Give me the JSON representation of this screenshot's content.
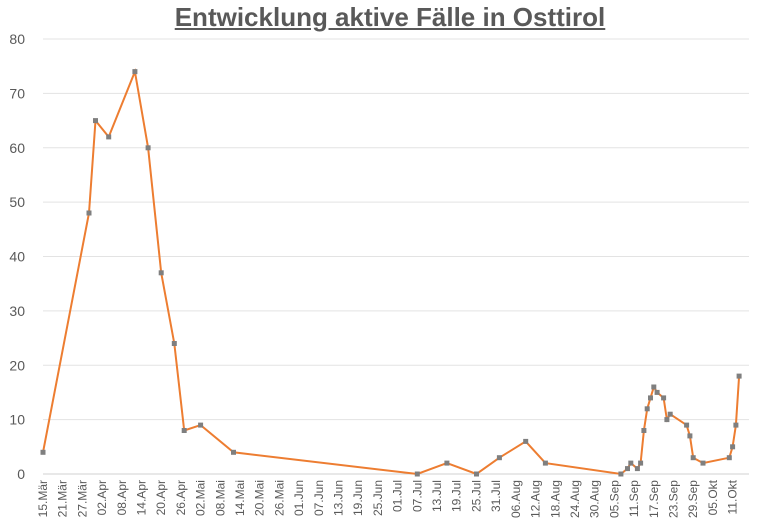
{
  "chart_data": {
    "type": "line",
    "title": "Entwicklung aktive Fälle in Osttirol",
    "xlabel": "",
    "ylabel": "",
    "ylim": [
      0,
      80
    ],
    "yticks": [
      0,
      10,
      20,
      30,
      40,
      50,
      60,
      70,
      80
    ],
    "xlim": [
      "2020-03-15",
      "2020-10-16"
    ],
    "xticks": [
      "15.Mär",
      "21.Mär",
      "27.Mär",
      "02.Apr",
      "08.Apr",
      "14.Apr",
      "20.Apr",
      "26.Apr",
      "02.Mai",
      "08.Mai",
      "14.Mai",
      "20.Mai",
      "26.Mai",
      "01.Jun",
      "07.Jun",
      "13.Jun",
      "19.Jun",
      "25.Jun",
      "01.Jul",
      "07.Jul",
      "13.Jul",
      "19.Jul",
      "25.Jul",
      "31.Jul",
      "06.Aug",
      "12.Aug",
      "18.Aug",
      "24.Aug",
      "30.Aug",
      "05.Sep",
      "11.Sep",
      "17.Sep",
      "23.Sep",
      "29.Sep",
      "05.Okt",
      "11.Okt"
    ],
    "grid": true,
    "legend": "none",
    "series": [
      {
        "color": "#ED7D31",
        "marker_color": "#7F7F7F",
        "points": [
          {
            "x": "2020-03-15",
            "y": 4
          },
          {
            "x": "2020-03-29",
            "y": 48
          },
          {
            "x": "2020-03-31",
            "y": 65
          },
          {
            "x": "2020-04-04",
            "y": 62
          },
          {
            "x": "2020-04-12",
            "y": 74
          },
          {
            "x": "2020-04-16",
            "y": 60
          },
          {
            "x": "2020-04-20",
            "y": 37
          },
          {
            "x": "2020-04-24",
            "y": 24
          },
          {
            "x": "2020-04-27",
            "y": 8
          },
          {
            "x": "2020-05-02",
            "y": 9
          },
          {
            "x": "2020-05-12",
            "y": 4
          },
          {
            "x": "2020-07-07",
            "y": 0
          },
          {
            "x": "2020-07-16",
            "y": 2
          },
          {
            "x": "2020-07-25",
            "y": 0
          },
          {
            "x": "2020-08-01",
            "y": 3
          },
          {
            "x": "2020-08-09",
            "y": 6
          },
          {
            "x": "2020-08-15",
            "y": 2
          },
          {
            "x": "2020-09-07",
            "y": 0
          },
          {
            "x": "2020-09-09",
            "y": 1
          },
          {
            "x": "2020-09-10",
            "y": 2
          },
          {
            "x": "2020-09-12",
            "y": 1
          },
          {
            "x": "2020-09-13",
            "y": 2
          },
          {
            "x": "2020-09-14",
            "y": 8
          },
          {
            "x": "2020-09-15",
            "y": 12
          },
          {
            "x": "2020-09-16",
            "y": 14
          },
          {
            "x": "2020-09-17",
            "y": 16
          },
          {
            "x": "2020-09-18",
            "y": 15
          },
          {
            "x": "2020-09-20",
            "y": 14
          },
          {
            "x": "2020-09-21",
            "y": 10
          },
          {
            "x": "2020-09-22",
            "y": 11
          },
          {
            "x": "2020-09-27",
            "y": 9
          },
          {
            "x": "2020-09-28",
            "y": 7
          },
          {
            "x": "2020-09-29",
            "y": 3
          },
          {
            "x": "2020-10-02",
            "y": 2
          },
          {
            "x": "2020-10-10",
            "y": 3
          },
          {
            "x": "2020-10-11",
            "y": 5
          },
          {
            "x": "2020-10-12",
            "y": 9
          },
          {
            "x": "2020-10-13",
            "y": 18
          }
        ]
      }
    ]
  }
}
